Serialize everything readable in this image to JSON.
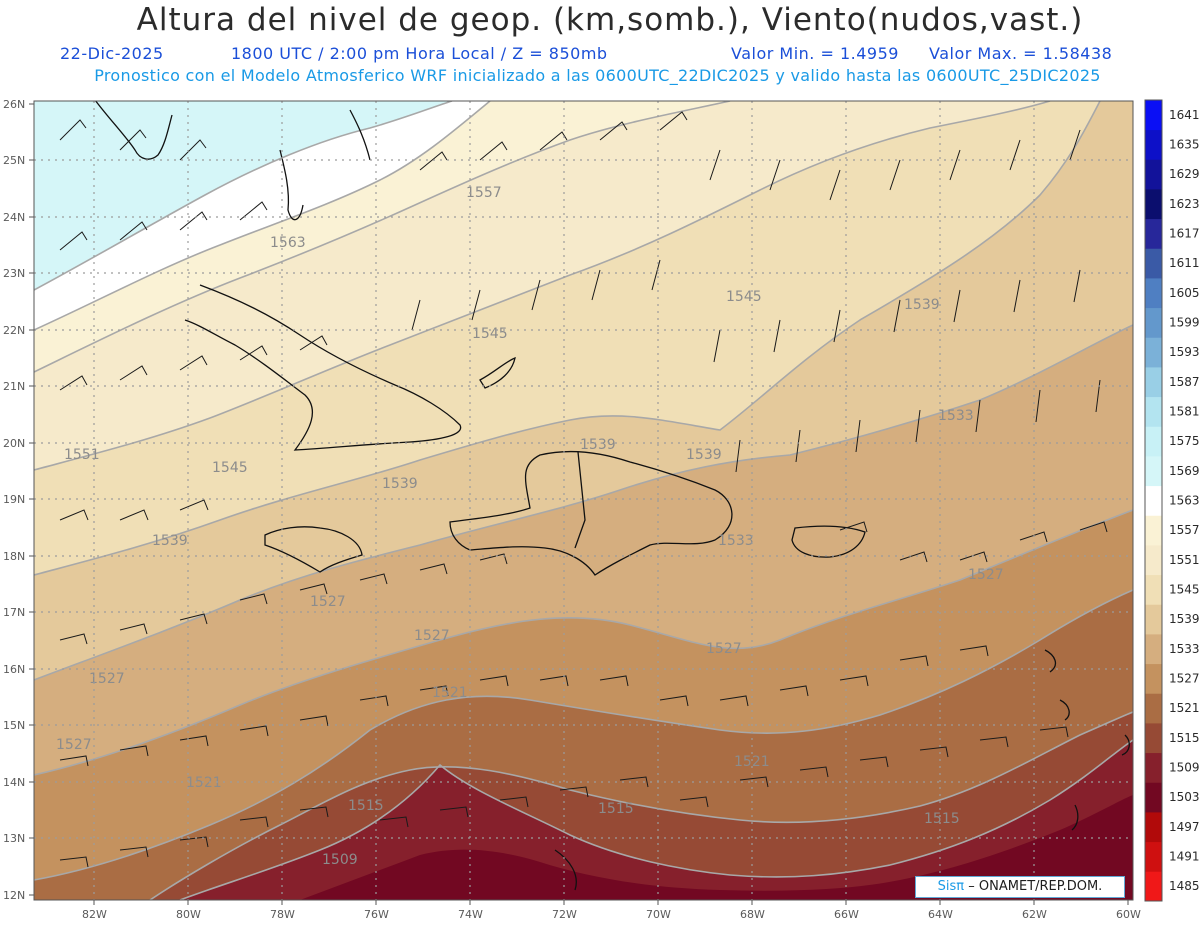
{
  "header": {
    "title": "Altura del nivel de geop. (km,somb.), Viento(nudos,vast.)",
    "date": "22-Dic-2025",
    "time": "1800 UTC / 2:00 pm Hora Local / Z = 850mb",
    "min": "Valor Min. = 1.4959",
    "max": "Valor Max. = 1.58438",
    "model_line": "Pronostico con el Modelo Atmosferico WRF inicializado a las 0600UTC_22DIC2025 y valido hasta las  0600UTC_25DIC2025"
  },
  "axes": {
    "lat_labels": [
      "26N",
      "25N",
      "24N",
      "23N",
      "22N",
      "21N",
      "20N",
      "19N",
      "18N",
      "17N",
      "16N",
      "15N",
      "14N",
      "13N",
      "12N"
    ],
    "lon_labels": [
      "82W",
      "80W",
      "78W",
      "76W",
      "74W",
      "72W",
      "70W",
      "68W",
      "66W",
      "64W",
      "62W",
      "60W"
    ],
    "lat_range": [
      12,
      26
    ],
    "lon_range": [
      -83.2,
      -60
    ]
  },
  "colorbar": {
    "labels": [
      "1641",
      "1635",
      "1629",
      "1623",
      "1617",
      "1611",
      "1605",
      "1599",
      "1593",
      "1587",
      "1581",
      "1575",
      "1569",
      "1563",
      "1557",
      "1551",
      "1545",
      "1539",
      "1533",
      "1527",
      "1521",
      "1515",
      "1509",
      "1503",
      "1497",
      "1491",
      "1485"
    ],
    "colors": [
      "#0a0ff5",
      "#0d10c8",
      "#12129a",
      "#0b0e6e",
      "#27279a",
      "#3a5aa6",
      "#4f7fc2",
      "#6398cc",
      "#7bb1d8",
      "#99cfe6",
      "#b3e4f0",
      "#c8f1f6",
      "#d5f6f8",
      "#ffffff",
      "#faf2d5",
      "#f6eacb",
      "#f0dfb6",
      "#e4c99b",
      "#d5ae7f",
      "#c4925f",
      "#aa6d44",
      "#964a35",
      "#86202c",
      "#720822",
      "#b10a0a",
      "#cf1010",
      "#f01818"
    ]
  },
  "map": {
    "contour_labels": [
      "1557",
      "1563",
      "1545",
      "1545",
      "1539",
      "1551",
      "1545",
      "1539",
      "1539",
      "1539",
      "1539",
      "1533",
      "1527",
      "1527",
      "1527",
      "1527",
      "1527",
      "1521",
      "1521",
      "1521",
      "1515",
      "1515",
      "1515",
      "1509",
      "1533",
      "1527"
    ],
    "fill_colors": {
      "b1569": "#d5f6f8",
      "b1563": "#ffffff",
      "b1557": "#faf2d5",
      "b1551": "#f6eacb",
      "b1545": "#f0dfb6",
      "b1539": "#e4c99b",
      "b1533": "#d5ae7f",
      "b1527": "#c4925f",
      "b1521": "#aa6d44",
      "b1515": "#964a35",
      "b1509": "#86202c",
      "b1503": "#720822"
    }
  },
  "credit": {
    "brand": "Sisπ",
    "text": "– ONAMET/REP.DOM."
  }
}
